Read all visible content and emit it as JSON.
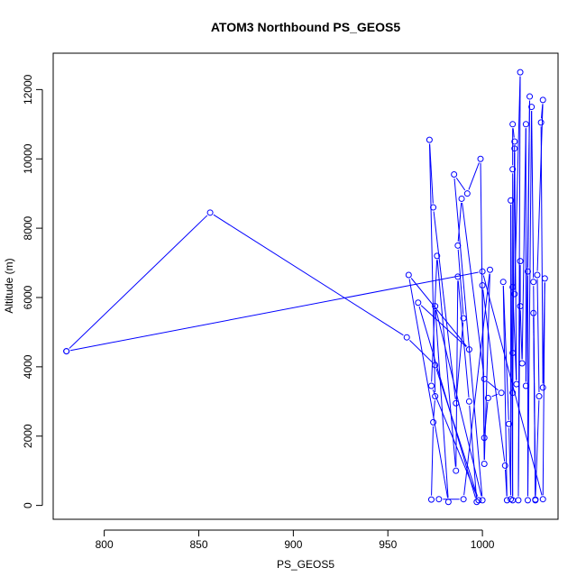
{
  "chart_data": {
    "type": "line",
    "title": "ATOM3 Northbound PS_GEOS5",
    "xlabel": "PS_GEOS5",
    "ylabel": "Altitude (m)",
    "xlim": [
      773,
      1040
    ],
    "ylim": [
      -400,
      13050
    ],
    "x_ticks": [
      800,
      850,
      900,
      950,
      1000
    ],
    "y_ticks": [
      0,
      2000,
      4000,
      6000,
      8000,
      10000,
      12000
    ],
    "grid": false,
    "legend": "none",
    "series_color": "#0000ff",
    "markers": "open-circle",
    "series": [
      {
        "points": [
          [
            780,
            4450
          ],
          [
            856,
            8450
          ],
          [
            960,
            4850
          ],
          [
            975,
            4050
          ],
          [
            998,
            150
          ],
          [
            973,
            3450
          ],
          [
            976,
            7200
          ],
          [
            986,
            1000
          ],
          [
            987,
            6600
          ],
          [
            993,
            3000
          ],
          [
            997,
            100
          ],
          [
            966,
            5850
          ],
          [
            993,
            4500
          ],
          [
            961,
            6650
          ],
          [
            982,
            100
          ],
          [
            975,
            5750
          ],
          [
            1000,
            150
          ],
          [
            985,
            9550
          ],
          [
            992,
            9000
          ],
          [
            999,
            10000
          ],
          [
            1001,
            1200
          ],
          [
            1004,
            6800
          ],
          [
            990,
            180
          ],
          [
            977,
            180
          ],
          [
            973,
            170
          ],
          [
            974,
            2400
          ],
          [
            975,
            3150
          ],
          [
            972,
            10550
          ],
          [
            974,
            8600
          ],
          [
            986,
            2950
          ],
          [
            990,
            5400
          ],
          [
            987,
            7500
          ],
          [
            989,
            8850
          ],
          [
            1001,
            3650
          ],
          [
            1010,
            3250
          ],
          [
            1003,
            3100
          ],
          [
            1001,
            1950
          ],
          [
            1000,
            6350
          ],
          [
            1012,
            1150
          ],
          [
            1013,
            150
          ],
          [
            1011,
            6450
          ],
          [
            1014,
            2350
          ],
          [
            1015,
            180
          ],
          [
            1015,
            8800
          ],
          [
            1016,
            150
          ],
          [
            1016,
            9700
          ],
          [
            1016,
            11000
          ],
          [
            1017,
            10500
          ],
          [
            1016,
            3250
          ],
          [
            1016,
            4400
          ],
          [
            1017,
            10300
          ],
          [
            1018,
            3500
          ],
          [
            1016,
            6300
          ],
          [
            1017,
            6100
          ],
          [
            1020,
            12500
          ],
          [
            1019,
            150
          ],
          [
            1020,
            7050
          ],
          [
            1020,
            5750
          ],
          [
            1021,
            4100
          ],
          [
            1023,
            11000
          ],
          [
            1023,
            3450
          ],
          [
            1025,
            11800
          ],
          [
            1024,
            6750
          ],
          [
            1024,
            150
          ],
          [
            1026,
            11500
          ],
          [
            1027,
            6450
          ],
          [
            1028,
            150
          ],
          [
            1027,
            5550
          ],
          [
            1028,
            170
          ],
          [
            1030,
            3150
          ],
          [
            1029,
            6650
          ],
          [
            1032,
            11700
          ],
          [
            1031,
            11050
          ],
          [
            1032,
            3400
          ],
          [
            1033,
            6550
          ],
          [
            1032,
            180
          ],
          [
            1000,
            6750
          ],
          [
            780,
            4450
          ]
        ]
      }
    ]
  }
}
